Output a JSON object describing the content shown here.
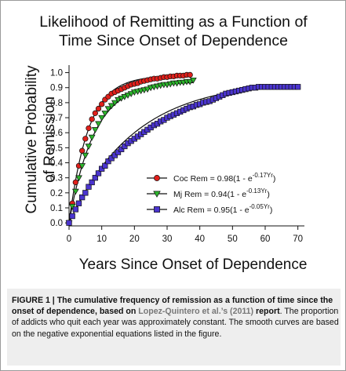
{
  "chart_data": {
    "type": "line",
    "title_line1": "Likelihood of Remitting as a Function of",
    "title_line2": "Time Since Onset of Dependence",
    "xlabel": "Years Since Onset of Dependence",
    "ylabel_line1": "Cumulative Probability",
    "ylabel_line2": "of Remission",
    "xlim": [
      0,
      72
    ],
    "ylim": [
      -0.02,
      1.05
    ],
    "x_ticks": [
      0,
      10,
      20,
      30,
      40,
      50,
      60,
      70
    ],
    "y_ticks": [
      "0.0",
      "0.1",
      "0.2",
      "0.3",
      "0.4",
      "0.5",
      "0.6",
      "0.7",
      "0.8",
      "0.9",
      "1.0"
    ],
    "grid": false,
    "legend_position": "lower-center",
    "series": [
      {
        "key": "coc",
        "marker": "circle",
        "color": "#e0201b",
        "legend_prefix": "Coc Rem = 0.98(1 - ",
        "legend_exp": "-0.17Yr",
        "fit": {
          "a": 0.98,
          "k": 0.17
        },
        "x": [
          0,
          1,
          2,
          3,
          4,
          5,
          6,
          7,
          8,
          9,
          10,
          11,
          12,
          13,
          14,
          15,
          16,
          17,
          18,
          19,
          20,
          21,
          22,
          23,
          24,
          25,
          26,
          27,
          28,
          29,
          30,
          31,
          32,
          33,
          34,
          35,
          36,
          37
        ],
        "y": [
          0.0,
          0.13,
          0.27,
          0.38,
          0.48,
          0.56,
          0.63,
          0.69,
          0.73,
          0.76,
          0.79,
          0.82,
          0.84,
          0.86,
          0.87,
          0.88,
          0.89,
          0.9,
          0.91,
          0.92,
          0.925,
          0.93,
          0.94,
          0.945,
          0.95,
          0.955,
          0.96,
          0.96,
          0.965,
          0.97,
          0.97,
          0.975,
          0.975,
          0.98,
          0.98,
          0.98,
          0.985,
          0.985
        ]
      },
      {
        "key": "mj",
        "marker": "triangle-down",
        "color": "#2cb52c",
        "legend_prefix": "Mj Rem = 0.94(1 - ",
        "legend_exp": "-0.13Yr",
        "fit": {
          "a": 0.94,
          "k": 0.13
        },
        "x": [
          0,
          1,
          2,
          3,
          4,
          5,
          6,
          7,
          8,
          9,
          10,
          11,
          12,
          13,
          14,
          15,
          16,
          17,
          18,
          19,
          20,
          21,
          22,
          23,
          24,
          25,
          26,
          27,
          28,
          29,
          30,
          31,
          32,
          33,
          34,
          35,
          36,
          37,
          38
        ],
        "y": [
          0.0,
          0.11,
          0.21,
          0.3,
          0.38,
          0.45,
          0.51,
          0.57,
          0.62,
          0.66,
          0.7,
          0.73,
          0.76,
          0.78,
          0.8,
          0.82,
          0.83,
          0.84,
          0.85,
          0.86,
          0.87,
          0.875,
          0.88,
          0.885,
          0.89,
          0.9,
          0.905,
          0.91,
          0.915,
          0.92,
          0.92,
          0.925,
          0.93,
          0.93,
          0.935,
          0.935,
          0.94,
          0.94,
          0.95
        ]
      },
      {
        "key": "alc",
        "marker": "square",
        "color": "#4b35cf",
        "legend_prefix": "Alc Rem = 0.95(1 - ",
        "legend_exp": "-0.05Yr",
        "fit": {
          "a": 0.95,
          "k": 0.05
        },
        "x": [
          0,
          1,
          2,
          3,
          4,
          5,
          6,
          7,
          8,
          9,
          10,
          11,
          12,
          13,
          14,
          15,
          16,
          17,
          18,
          19,
          20,
          21,
          22,
          23,
          24,
          25,
          26,
          27,
          28,
          29,
          30,
          31,
          32,
          33,
          34,
          35,
          36,
          37,
          38,
          39,
          40,
          41,
          42,
          43,
          44,
          45,
          46,
          47,
          48,
          49,
          50,
          51,
          52,
          53,
          54,
          55,
          56,
          57,
          58,
          59,
          60,
          61,
          62,
          63,
          64,
          65,
          66,
          67,
          68,
          69,
          70
        ],
        "y": [
          0.0,
          0.045,
          0.09,
          0.13,
          0.17,
          0.2,
          0.24,
          0.27,
          0.3,
          0.33,
          0.36,
          0.38,
          0.41,
          0.43,
          0.45,
          0.47,
          0.49,
          0.51,
          0.53,
          0.545,
          0.56,
          0.575,
          0.59,
          0.605,
          0.62,
          0.635,
          0.65,
          0.66,
          0.675,
          0.685,
          0.7,
          0.71,
          0.72,
          0.73,
          0.74,
          0.75,
          0.76,
          0.77,
          0.775,
          0.785,
          0.79,
          0.8,
          0.805,
          0.81,
          0.82,
          0.83,
          0.84,
          0.85,
          0.86,
          0.865,
          0.87,
          0.875,
          0.88,
          0.885,
          0.89,
          0.895,
          0.9,
          0.9,
          0.905,
          0.905,
          0.905,
          0.905,
          0.905,
          0.905,
          0.905,
          0.905,
          0.905,
          0.905,
          0.905,
          0.905,
          0.905
        ]
      }
    ]
  },
  "caption": {
    "lead": "FIGURE 1 | The cumulative frequency of remission as a function of time since the onset of dependence, based on ",
    "ref": "Lopez-Quintero et al.’s (2011)",
    "bold_tail": " report",
    "body": ". The proportion of addicts who quit each year was approximately constant. The smooth curves are based on the negative exponential equations listed in the figure."
  }
}
